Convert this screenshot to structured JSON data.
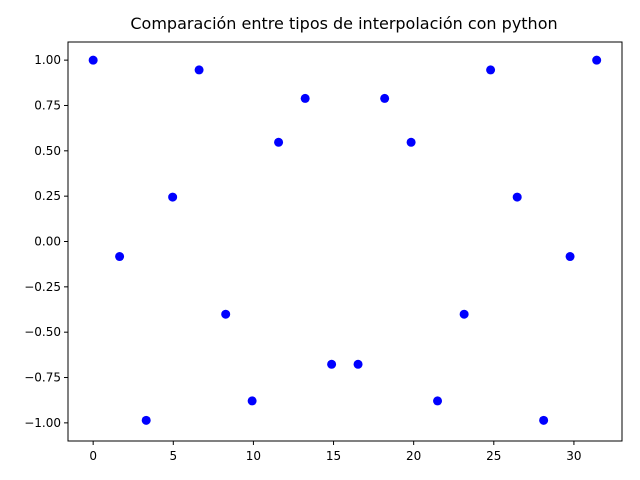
{
  "chart_data": {
    "type": "scatter",
    "title": "Comparación entre tipos de interpolación con python",
    "xlabel": "",
    "ylabel": "",
    "xlim": [
      -1.57,
      33.0
    ],
    "ylim": [
      -1.1,
      1.1
    ],
    "x_ticks": [
      0,
      5,
      10,
      15,
      20,
      25,
      30
    ],
    "y_ticks": [
      1.0,
      0.75,
      0.5,
      0.25,
      0.0,
      -0.25,
      -0.5,
      -0.75,
      -1.0
    ],
    "x_tick_labels": [
      "0",
      "5",
      "10",
      "15",
      "20",
      "25",
      "30"
    ],
    "y_tick_labels": [
      "1.00",
      "0.75",
      "0.50",
      "0.25",
      "0.00",
      "−0.25",
      "−0.50",
      "−0.75",
      "−1.00"
    ],
    "grid": false,
    "marker_color": "#0000ff",
    "series": [
      {
        "x": [
          0,
          1.65,
          3.31,
          4.96,
          6.61,
          8.27,
          9.92,
          11.57,
          13.23,
          14.88,
          16.53,
          18.19,
          19.84,
          21.49,
          23.15,
          24.8,
          26.46,
          28.11,
          29.76,
          31.42
        ],
        "y": [
          1.0,
          -0.083,
          -0.986,
          0.245,
          0.946,
          -0.401,
          -0.879,
          0.547,
          0.789,
          -0.677,
          -0.677,
          0.789,
          0.547,
          -0.879,
          -0.401,
          0.946,
          0.245,
          -0.986,
          -0.083,
          1.0
        ]
      }
    ]
  }
}
